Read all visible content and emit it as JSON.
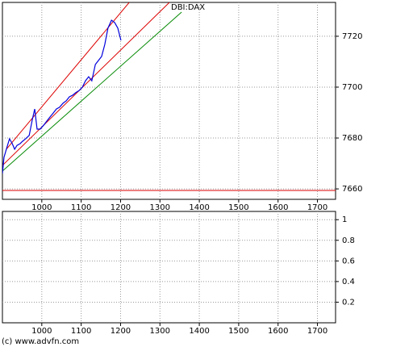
{
  "chart_data": [
    {
      "type": "line",
      "title": "DBI:DAX",
      "xlim": [
        900,
        1746
      ],
      "ylim": [
        7655.9,
        7733.3
      ],
      "xticks": [
        1000,
        1100,
        1200,
        1300,
        1400,
        1500,
        1600,
        1700
      ],
      "yticks": [
        7660,
        7680,
        7700,
        7720
      ],
      "grid": true,
      "series": [
        {
          "color": "#0000dd",
          "x": [
            900,
            904,
            910,
            918,
            925,
            931,
            937,
            945,
            951,
            959,
            968,
            976,
            982,
            988,
            996,
            1005,
            1013,
            1021,
            1029,
            1037,
            1045,
            1054,
            1062,
            1070,
            1078,
            1086,
            1095,
            1103,
            1111,
            1119,
            1127,
            1136,
            1144,
            1152,
            1160,
            1168,
            1177,
            1185,
            1193,
            1201
          ],
          "values": [
            7666.0,
            7672.4,
            7675.6,
            7679.7,
            7677.8,
            7675.6,
            7677.1,
            7677.8,
            7678.7,
            7679.7,
            7681.0,
            7687.3,
            7691.4,
            7683.5,
            7683.5,
            7685.1,
            7686.7,
            7688.3,
            7689.8,
            7691.4,
            7692.1,
            7693.7,
            7694.6,
            7696.2,
            7696.8,
            7697.8,
            7698.7,
            7700.0,
            7702.5,
            7704.1,
            7702.5,
            7708.9,
            7710.5,
            7712.1,
            7716.8,
            7723.2,
            7726.3,
            7725.4,
            7723.2,
            7718.4
          ]
        }
      ],
      "lines": [
        {
          "color": "#dd0000",
          "x": [
            910,
            1222
          ],
          "y": [
            7675.6,
            7733.3
          ]
        },
        {
          "color": "#dd0000",
          "x": [
            900,
            1324
          ],
          "y": [
            7669.2,
            7733.3
          ]
        },
        {
          "color": "#008800",
          "x": [
            900,
            1355
          ],
          "y": [
            7667.0,
            7729.5
          ]
        },
        {
          "color": "#dd0000",
          "x": [
            900,
            1746
          ],
          "y": [
            7659.4,
            7659.4
          ]
        }
      ]
    },
    {
      "type": "line",
      "xlim": [
        900,
        1746
      ],
      "ylim": [
        0,
        1.08
      ],
      "xticks": [
        1000,
        1100,
        1200,
        1300,
        1400,
        1500,
        1600,
        1700
      ],
      "yticks": [
        0.2,
        0.4,
        0.6,
        0.8,
        1
      ],
      "grid": true,
      "series": []
    }
  ],
  "footer": "(c) www.advfn.com"
}
